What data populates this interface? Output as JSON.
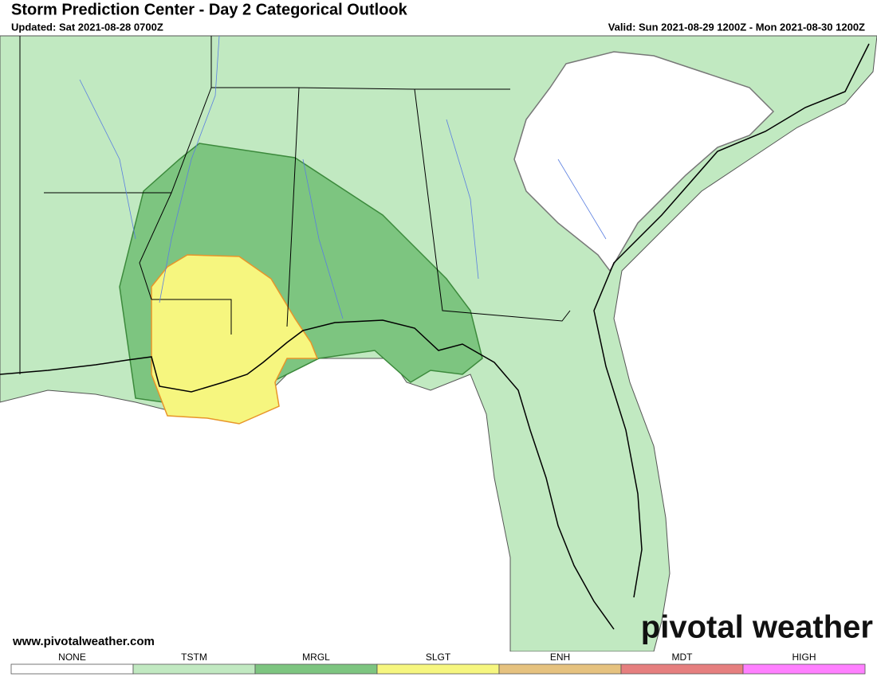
{
  "header": {
    "title": "Storm Prediction Center - Day 2 Categorical Outlook",
    "updated": "Updated: Sat 2021-08-28 0700Z",
    "valid": "Valid: Sun 2021-08-29 1200Z - Mon 2021-08-30 1200Z"
  },
  "footer": {
    "website": "www.pivotalweather.com",
    "logo": "pivotal weather"
  },
  "legend": [
    {
      "label": "NONE",
      "color": "#ffffff"
    },
    {
      "label": "TSTM",
      "color": "#c1e9c1"
    },
    {
      "label": "MRGL",
      "color": "#7dc580"
    },
    {
      "label": "SLGT",
      "color": "#f6f67f"
    },
    {
      "label": "ENH",
      "color": "#e6c27f"
    },
    {
      "label": "MDT",
      "color": "#e67f7f"
    },
    {
      "label": "HIGH",
      "color": "#ff80ff"
    }
  ]
}
